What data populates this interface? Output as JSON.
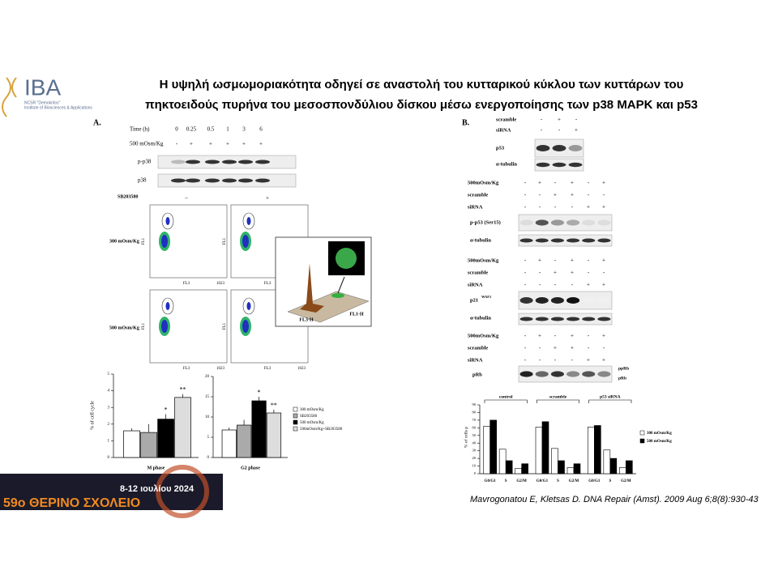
{
  "header": {
    "title_lines": [
      "Η υψηλή ωσμωμοριακότητα οδηγεί σε αναστολή του κυτταρικού κύκλου των κυττάρων του",
      "πηκτοειδούς πυρήνα του μεσοσπονδύλιου δίσκου μέσω ενεργοποίησης των p38 MAPK και p53"
    ]
  },
  "logo": {
    "name": "IBA",
    "org": "NCSR \"Demokritos\"",
    "institute": "Institute of Biosciences & Applications"
  },
  "banner": {
    "dates": "8-12 ιουλίου 2024",
    "school": "59ο ΘΕΡΙΝΟ ΣΧΟΛΕΙΟ"
  },
  "citation": "Mavrogonatou E, Kletsas D. DNA Repair (Amst). 2009 Aug 6;8(8):930-43",
  "panel_a": {
    "label": "A.",
    "time_header": "Time (h)",
    "times": [
      "0",
      "0.25",
      "0.5",
      "1",
      "3",
      "6"
    ],
    "osm_header": "500 mOsm/Kg",
    "osm_signs": [
      "-",
      "+",
      "+",
      "+",
      "+",
      "+"
    ],
    "blots": [
      "p-p38",
      "p38"
    ],
    "inhibitor": "SB203580",
    "inhibitor_signs": [
      "–",
      "+"
    ],
    "rows": [
      "300 mOsm/Kg",
      "500 mOsm/Kg"
    ],
    "flow_y": "FL1",
    "flow_x": "FL3",
    "flow_max": "1023",
    "inset_axes": [
      "FL3-H",
      "FL1-H"
    ]
  },
  "chart_m": {
    "type": "bar",
    "xlabel": "M phase",
    "ylabel": "% of cell cycle",
    "values": [
      1.6,
      1.5,
      2.3,
      3.6
    ],
    "errors": [
      0.15,
      0.5,
      0.3,
      0.2
    ],
    "annotations": [
      null,
      null,
      "*",
      "**"
    ],
    "ylim": [
      0,
      5
    ],
    "yticks": [
      0,
      1,
      2,
      3,
      4,
      5
    ]
  },
  "chart_g2": {
    "type": "bar",
    "xlabel": "G2 phase",
    "values": [
      6.8,
      8,
      14,
      11
    ],
    "errors": [
      0.6,
      1.3,
      1,
      0.8
    ],
    "annotations": [
      null,
      null,
      "*",
      "**"
    ],
    "ylim": [
      0,
      20
    ],
    "yticks": [
      0,
      5,
      10,
      15,
      20
    ]
  },
  "legend_a": [
    "300 mOsm/Kg",
    "SB203580",
    "500 mOsm/Kg",
    "500mOsm/Kg+SB203580"
  ],
  "panel_b": {
    "label": "B.",
    "s1_rows": [
      "scramble",
      "siRNA"
    ],
    "s1_signs": [
      [
        "-",
        "+",
        "-"
      ],
      [
        "-",
        "-",
        "+"
      ]
    ],
    "s1_blots": [
      "p53",
      "α-tubulin"
    ],
    "cond_rows": [
      "500mOsm/Kg",
      "scramble",
      "siRNA"
    ],
    "cond_signs": [
      [
        "-",
        "+",
        "-",
        "+",
        "-",
        "+"
      ],
      [
        "-",
        "-",
        "+",
        "+",
        "-",
        "-"
      ],
      [
        "-",
        "-",
        "-",
        "-",
        "+",
        "+"
      ]
    ],
    "s2_blots": [
      "p-p53 (Ser15)",
      "α-tubulin"
    ],
    "s3_blots": [
      "p21",
      "α-tubulin"
    ],
    "s3_sup": "WAF1",
    "s4_blots": [
      "pRb"
    ],
    "s4_bands": [
      "ppRb",
      "pRb"
    ]
  },
  "chart_b": {
    "type": "grouped_bar",
    "ylabel": "% of cells p",
    "groups": [
      "control",
      "scramble",
      "p53 siRNA"
    ],
    "categories": [
      "G0/G1",
      "S",
      "G2/M",
      "G0/G1",
      "S",
      "G2/M",
      "G0/G1",
      "S",
      "G2/M"
    ],
    "series": [
      {
        "name": "300 mOsm/Kg",
        "color": "#ffffff",
        "values": [
          62,
          32,
          7,
          61,
          33,
          8,
          61,
          31,
          8
        ]
      },
      {
        "name": "500 mOsm/Kg",
        "color": "#000000",
        "values": [
          70,
          17,
          13,
          68,
          17,
          13,
          63,
          20,
          17
        ]
      }
    ],
    "ylim": [
      0,
      90
    ],
    "yticks": [
      0,
      10,
      20,
      30,
      40,
      50,
      60,
      70,
      80,
      90
    ]
  }
}
